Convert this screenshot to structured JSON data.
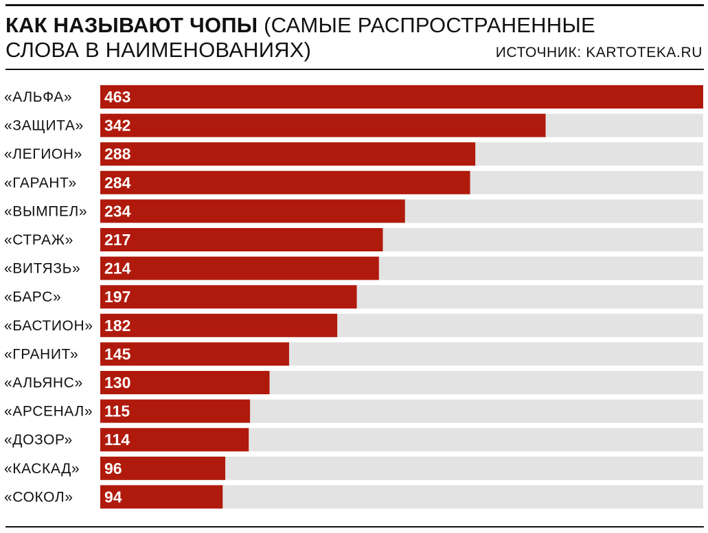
{
  "header": {
    "title_bold": "КАК НАЗЫВАЮТ ЧОПЫ",
    "title_rest": " (САМЫЕ РАСПРОСТРАНЕННЫЕ СЛОВА В НАИМЕНОВАНИЯХ)",
    "source": "ИСТОЧНИК: KARTOTEKA.RU"
  },
  "chart_data": {
    "type": "bar",
    "orientation": "horizontal",
    "categories": [
      "«АЛЬФА»",
      "«ЗАЩИТА»",
      "«ЛЕГИОН»",
      "«ГАРАНТ»",
      "«ВЫМПЕЛ»",
      "«СТРАЖ»",
      "«ВИТЯЗЬ»",
      "«БАРС»",
      "«БАСТИОН»",
      "«ГРАНИТ»",
      "«АЛЬЯНС»",
      "«АРСЕНАЛ»",
      "«ДОЗОР»",
      "«КАСКАД»",
      "«СОКОЛ»"
    ],
    "values": [
      463,
      342,
      288,
      284,
      234,
      217,
      214,
      197,
      182,
      145,
      130,
      115,
      114,
      96,
      94
    ],
    "xlim": [
      0,
      463
    ],
    "data_labels": "inside-left",
    "grid": false,
    "colors": {
      "bar": "#b01a0c",
      "track": "#e3e3e3",
      "value_text": "#ffffff",
      "text": "#111111"
    }
  }
}
